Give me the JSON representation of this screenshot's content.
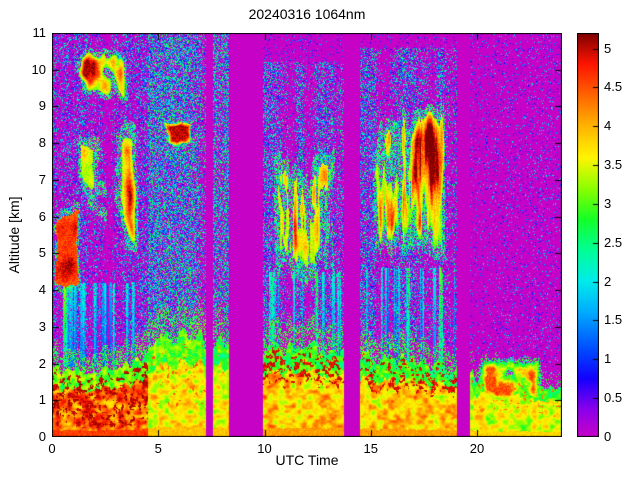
{
  "figure": {
    "background": "#ffffff"
  },
  "chart_data": {
    "type": "heatmap",
    "title": "20240316 1064nm",
    "xlabel": "UTC Time",
    "ylabel": "Altitude [km]",
    "xlim": [
      0,
      24
    ],
    "ylim": [
      0,
      11
    ],
    "x_ticks": {
      "values": [
        0,
        5,
        10,
        15,
        20
      ],
      "labels": [
        "0",
        "5",
        "10",
        "15",
        "20"
      ]
    },
    "y_ticks": {
      "values": [
        0,
        1,
        2,
        3,
        4,
        5,
        6,
        7,
        8,
        9,
        10,
        11
      ],
      "labels": [
        "0",
        "1",
        "2",
        "3",
        "4",
        "5",
        "6",
        "7",
        "8",
        "9",
        "10",
        "11"
      ]
    },
    "colorbar": {
      "range": [
        0,
        5.2
      ],
      "ticks": {
        "values": [
          0,
          0.5,
          1,
          1.5,
          2,
          2.5,
          3,
          3.5,
          4,
          4.5,
          5
        ],
        "labels": [
          "0",
          "0.5",
          "1",
          "1.5",
          "2",
          "2.5",
          "3",
          "3.5",
          "4",
          "4.5",
          "5"
        ]
      },
      "colormap_stops": [
        [
          0.0,
          199,
          2,
          199
        ],
        [
          0.35,
          140,
          0,
          235
        ],
        [
          0.75,
          20,
          0,
          255
        ],
        [
          1.1,
          0,
          70,
          255
        ],
        [
          1.6,
          0,
          170,
          255
        ],
        [
          2.0,
          0,
          235,
          235
        ],
        [
          2.4,
          0,
          255,
          150
        ],
        [
          2.8,
          20,
          255,
          40
        ],
        [
          3.2,
          140,
          255,
          0
        ],
        [
          3.6,
          255,
          245,
          0
        ],
        [
          4.0,
          255,
          180,
          0
        ],
        [
          4.4,
          255,
          100,
          0
        ],
        [
          4.8,
          255,
          20,
          0
        ],
        [
          5.2,
          125,
          0,
          0
        ]
      ]
    },
    "background_value": 0,
    "data_gaps_utc": [
      [
        7.25,
        7.6
      ],
      [
        8.35,
        9.95
      ],
      [
        13.75,
        14.5
      ],
      [
        19.05,
        19.65
      ]
    ],
    "speckle_zones": [
      {
        "t": [
          0,
          24
        ],
        "z": [
          0,
          11
        ],
        "density": 0.1,
        "v": [
          0.2,
          1.8
        ],
        "colmod": 0,
        "seed": 1
      },
      {
        "t": [
          0,
          4.5
        ],
        "z": [
          1.6,
          11
        ],
        "density": 0.42,
        "v": [
          0.3,
          2.6
        ],
        "colmod": 1.3,
        "seed": 2
      },
      {
        "t": [
          4.5,
          7.25
        ],
        "z": [
          0,
          11
        ],
        "density": 0.62,
        "v": [
          0.7,
          3.0
        ],
        "colmod": 1.1,
        "seed": 3
      },
      {
        "t": [
          4.5,
          7.25
        ],
        "z": [
          0,
          3.2
        ],
        "density": 0.5,
        "v": [
          2.0,
          3.4
        ],
        "colmod": 1.0,
        "seed": 4
      },
      {
        "t": [
          7.6,
          8.35
        ],
        "z": [
          0,
          11
        ],
        "density": 0.6,
        "v": [
          0.8,
          3.0
        ],
        "colmod": 0.8,
        "seed": 5
      },
      {
        "t": [
          9.95,
          13.75
        ],
        "z": [
          0,
          10.2
        ],
        "density": 0.5,
        "v": [
          0.5,
          2.8
        ],
        "colmod": 1.2,
        "seed": 6
      },
      {
        "t": [
          14.5,
          19.05
        ],
        "z": [
          0,
          10.6
        ],
        "density": 0.5,
        "v": [
          0.5,
          2.8
        ],
        "colmod": 1.2,
        "seed": 7
      },
      {
        "t": [
          19.65,
          24
        ],
        "z": [
          0,
          11
        ],
        "density": 0.13,
        "v": [
          0.3,
          2.2
        ],
        "colmod": 0.9,
        "seed": 8
      }
    ],
    "clouds": [
      {
        "t": [
          0,
          1.4
        ],
        "z": [
          3.7,
          6.7
        ],
        "v": [
          4.4,
          5.2
        ],
        "th": 0.3,
        "sx": 0.9,
        "sz": 0.8,
        "seed": 11,
        "streaky": 0,
        "ztilt": 0
      },
      {
        "t": [
          0.7,
          4.4
        ],
        "z": [
          4.0,
          9.7
        ],
        "v": [
          3.2,
          5.2
        ],
        "th": 0.5,
        "sx": 0.75,
        "sz": 0.55,
        "seed": 23,
        "streaky": 0,
        "ztilt": 0.3
      },
      {
        "t": [
          0.1,
          4.0
        ],
        "z": [
          8.7,
          11
        ],
        "v": [
          3.0,
          5.1
        ],
        "th": 0.5,
        "sx": 1.1,
        "sz": 0.9,
        "seed": 37,
        "streaky": 0,
        "ztilt": 0
      },
      {
        "t": [
          5.1,
          6.8
        ],
        "z": [
          7.7,
          8.8
        ],
        "v": [
          3.4,
          5.0
        ],
        "th": 0.55,
        "sx": 1.5,
        "sz": 1.5,
        "seed": 41,
        "streaky": 0,
        "ztilt": 0
      },
      {
        "t": [
          9.95,
          13.75
        ],
        "z": [
          3.3,
          8.9
        ],
        "v": [
          3.3,
          5.2
        ],
        "th": 0.47,
        "sx": 0.85,
        "sz": 0.5,
        "seed": 53,
        "streaky": 1,
        "ztilt": 0.9
      },
      {
        "t": [
          14.55,
          19.0
        ],
        "z": [
          3.5,
          10.4
        ],
        "v": [
          3.1,
          5.2
        ],
        "th": 0.49,
        "sx": 0.8,
        "sz": 0.5,
        "seed": 67,
        "streaky": 1,
        "ztilt": 0.8
      },
      {
        "t": [
          19.8,
          23.3
        ],
        "z": [
          0.7,
          2.4
        ],
        "v": [
          2.6,
          4.5
        ],
        "th": 0.42,
        "sx": 1.4,
        "sz": 1.8,
        "seed": 79,
        "streaky": 0,
        "ztilt": 0
      }
    ],
    "fallstreaks": [
      {
        "t": [
          10.2,
          13.7
        ],
        "z": [
          1.9,
          4.5
        ],
        "v": [
          1.6,
          3.4
        ],
        "seed": 97
      },
      {
        "t": [
          14.7,
          18.95
        ],
        "z": [
          1.9,
          4.6
        ],
        "v": [
          1.6,
          3.4
        ],
        "seed": 103
      },
      {
        "t": [
          0.5,
          4.2
        ],
        "z": [
          1.9,
          4.2
        ],
        "v": [
          1.5,
          3.0
        ],
        "seed": 109
      }
    ],
    "boundary_layer": {
      "top_km": [
        [
          0,
          1.9
        ],
        [
          2,
          1.85
        ],
        [
          4,
          1.95
        ],
        [
          5,
          2.6
        ],
        [
          6.5,
          2.75
        ],
        [
          7.4,
          2.6
        ],
        [
          8,
          2.65
        ],
        [
          10,
          2.45
        ],
        [
          12,
          2.4
        ],
        [
          13.5,
          2.3
        ],
        [
          14.5,
          2.2
        ],
        [
          16,
          2.1
        ],
        [
          18,
          2.0
        ],
        [
          19,
          1.9
        ],
        [
          20,
          1.7
        ],
        [
          21.5,
          1.55
        ],
        [
          23,
          1.4
        ],
        [
          24,
          1.3
        ]
      ],
      "eras": [
        {
          "t": [
            0,
            4.5
          ],
          "core": 3.9,
          "amp": 1.1,
          "top": 2.9,
          "streak": 5.0,
          "streak_th": 0.6,
          "streak_zn": [
            0.15,
            0.92
          ],
          "fringe": 0.45,
          "seed": 17
        },
        {
          "t": [
            4.5,
            7.25
          ],
          "core": 3.2,
          "amp": 0.9,
          "top": 2.8,
          "streak": 4.4,
          "streak_th": 0.74,
          "streak_zn": [
            0.3,
            0.9
          ],
          "fringe": 0.4,
          "seed": 19
        },
        {
          "t": [
            7.6,
            8.35
          ],
          "core": 3.2,
          "amp": 0.8,
          "top": 2.7,
          "streak": 4.2,
          "streak_th": 0.76,
          "streak_zn": [
            0.3,
            0.9
          ],
          "fringe": 0.35,
          "seed": 29
        },
        {
          "t": [
            9.95,
            13.75
          ],
          "core": 3.4,
          "amp": 1.0,
          "top": 2.7,
          "streak": 4.9,
          "streak_th": 0.58,
          "streak_zn": [
            0.6,
            0.97
          ],
          "fringe": 0.4,
          "seed": 31
        },
        {
          "t": [
            14.5,
            19.05
          ],
          "core": 3.4,
          "amp": 1.0,
          "top": 2.7,
          "streak": 4.9,
          "streak_th": 0.58,
          "streak_zn": [
            0.6,
            0.97
          ],
          "fringe": 0.4,
          "seed": 43
        },
        {
          "t": [
            19.65,
            24
          ],
          "core": 3.1,
          "amp": 0.9,
          "top": 2.8,
          "streak": 4.3,
          "streak_th": 0.72,
          "streak_zn": [
            0.4,
            0.95
          ],
          "fringe": 0.2,
          "seed": 47
        }
      ]
    },
    "noise_seed": 20240316
  }
}
